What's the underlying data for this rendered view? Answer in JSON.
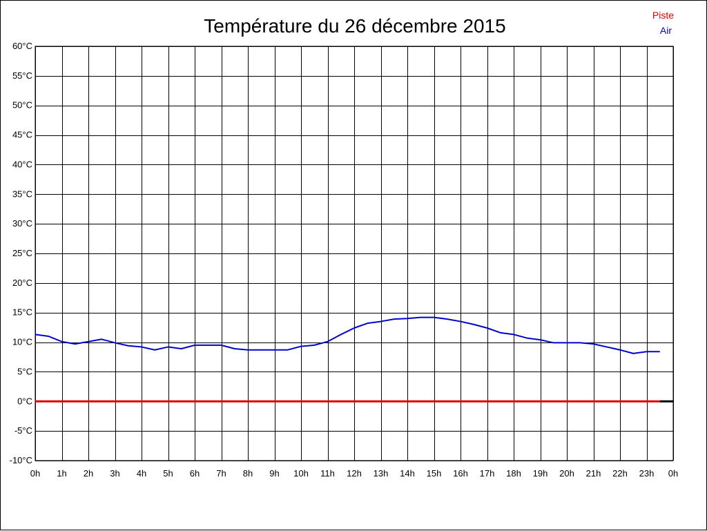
{
  "chart_data": {
    "type": "line",
    "title": "Température du 26 décembre 2015",
    "xlabel": "",
    "ylabel": "",
    "xlim": [
      0,
      24
    ],
    "ylim": [
      -10,
      60
    ],
    "y_ticks": [
      -10,
      -5,
      0,
      5,
      10,
      15,
      20,
      25,
      30,
      35,
      40,
      45,
      50,
      55,
      60
    ],
    "y_tick_labels": [
      "-10°C",
      "-5°C",
      "0°C",
      "5°C",
      "10°C",
      "15°C",
      "20°C",
      "25°C",
      "30°C",
      "35°C",
      "40°C",
      "45°C",
      "50°C",
      "55°C",
      "60°C"
    ],
    "x_ticks": [
      0,
      1,
      2,
      3,
      4,
      5,
      6,
      7,
      8,
      9,
      10,
      11,
      12,
      13,
      14,
      15,
      16,
      17,
      18,
      19,
      20,
      21,
      22,
      23,
      24
    ],
    "x_tick_labels": [
      "0h",
      "1h",
      "2h",
      "3h",
      "4h",
      "5h",
      "6h",
      "7h",
      "8h",
      "9h",
      "10h",
      "11h",
      "12h",
      "13h",
      "14h",
      "15h",
      "16h",
      "17h",
      "18h",
      "19h",
      "20h",
      "21h",
      "22h",
      "23h",
      "0h"
    ],
    "grid": true,
    "legend_position": "top-right",
    "series": [
      {
        "name": "Piste",
        "color": "#dd0000",
        "x": [
          0,
          23.5
        ],
        "y": [
          0,
          0
        ]
      },
      {
        "name": "Air",
        "color": "#0000cc",
        "x": [
          0,
          0.5,
          1,
          1.5,
          2,
          2.5,
          3,
          3.5,
          4,
          4.5,
          5,
          5.5,
          6,
          6.5,
          7,
          7.5,
          8,
          8.5,
          9,
          9.5,
          10,
          10.5,
          11,
          11.5,
          12,
          12.5,
          13,
          13.5,
          14,
          14.5,
          15,
          15.5,
          16,
          16.5,
          17,
          17.5,
          18,
          18.5,
          19,
          19.5,
          20,
          20.5,
          21,
          21.5,
          22,
          22.5,
          23,
          23.5
        ],
        "y": [
          11.3,
          11.0,
          10.1,
          9.7,
          10.1,
          10.5,
          9.9,
          9.4,
          9.2,
          8.7,
          9.2,
          8.9,
          9.5,
          9.5,
          9.5,
          8.9,
          8.7,
          8.7,
          8.7,
          8.7,
          9.3,
          9.5,
          10.1,
          11.3,
          12.4,
          13.2,
          13.5,
          13.9,
          14.0,
          14.2,
          14.2,
          13.9,
          13.5,
          13.0,
          12.4,
          11.6,
          11.3,
          10.7,
          10.4,
          9.9,
          9.9,
          9.9,
          9.7,
          9.2,
          8.7,
          8.1,
          8.4,
          8.4
        ]
      }
    ],
    "extra_marks": [
      {
        "color": "#000000",
        "x": [
          23.5,
          24
        ],
        "y": [
          0,
          0
        ]
      }
    ]
  }
}
